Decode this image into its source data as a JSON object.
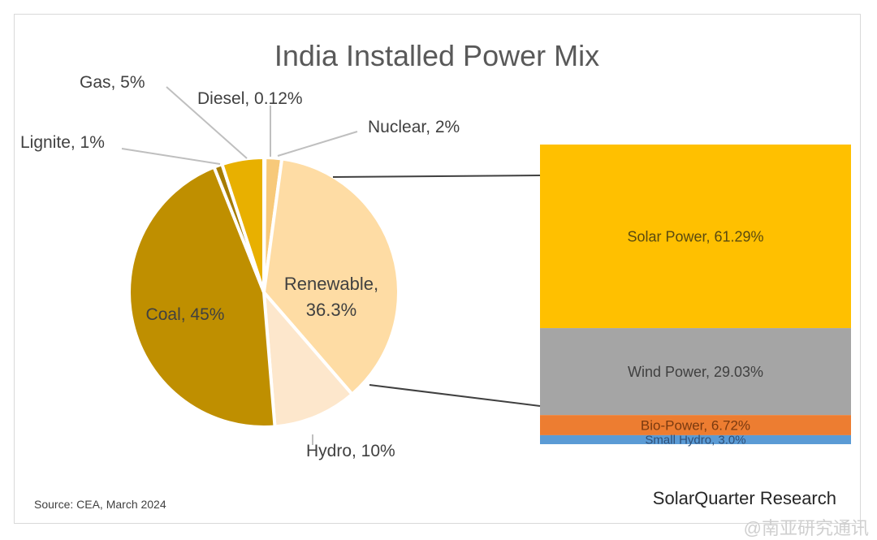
{
  "chart_data": [
    {
      "type": "pie",
      "title": "India Installed Power Mix",
      "slices": [
        {
          "label": "Diesel",
          "value": 0.12,
          "text": "Diesel, 0.12%",
          "color": "#f2c000"
        },
        {
          "label": "Nuclear",
          "value": 2,
          "text": "Nuclear, 2%",
          "color": "#f7c97a"
        },
        {
          "label": "Renewable",
          "value": 36.3,
          "text1": "Renewable,",
          "text2": "36.3%",
          "color": "#fedca4"
        },
        {
          "label": "Hydro",
          "value": 10,
          "text": "Hydro, 10%",
          "color": "#fde7cc"
        },
        {
          "label": "Coal",
          "value": 45,
          "text": "Coal, 45%",
          "color": "#bf8f00"
        },
        {
          "label": "Lignite",
          "value": 1,
          "text": "Lignite, 1%",
          "color": "#a67c00"
        },
        {
          "label": "Gas",
          "value": 5,
          "text": "Gas, 5%",
          "color": "#e8b000"
        }
      ]
    },
    {
      "type": "stacked-bar",
      "breakdown_of": "Renewable",
      "segments": [
        {
          "label": "Solar Power",
          "value": 61.29,
          "text": "Solar Power, 61.29%",
          "color": "#ffc000",
          "text_color": "#5a4a10"
        },
        {
          "label": "Wind Power",
          "value": 29.03,
          "text": "Wind Power, 29.03%",
          "color": "#a5a5a5",
          "text_color": "#404040"
        },
        {
          "label": "Bio-Power",
          "value": 6.72,
          "text": "Bio-Power, 6.72%",
          "color": "#ed7d31",
          "text_color": "#7a3a10"
        },
        {
          "label": "Small Hydro",
          "value": 3.0,
          "text": "Small Hydro, 3.0%",
          "color": "#5b9bd5",
          "text_color": "#2e4f78"
        }
      ]
    }
  ],
  "source": "Source: CEA, March 2024",
  "credit": "SolarQuarter Research",
  "watermark": "@南亚研究通讯"
}
